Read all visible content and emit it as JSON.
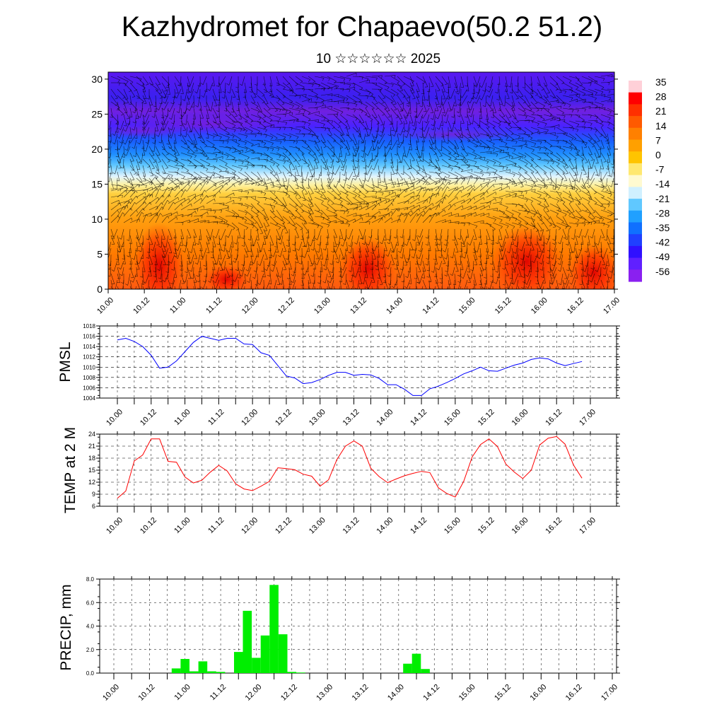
{
  "header": {
    "title": "Kazhydromet for Chapaevo(50.2 51.2)",
    "subtitle": "10 ☆☆☆☆☆☆ 2025"
  },
  "colors": {
    "pmsl_line": "#0000ff",
    "temp_line": "#ff0000",
    "precip_bar": "#00ee00"
  },
  "chart_data": [
    {
      "type": "heatmap",
      "name": "cross-section",
      "x_ticks": [
        "10.00",
        "10.12",
        "11.00",
        "11.12",
        "12.00",
        "12.12",
        "13.00",
        "13.12",
        "14.00",
        "14.12",
        "15.00",
        "15.12",
        "16.00",
        "16.12",
        "17.00"
      ],
      "y_ticks": [
        0,
        5,
        10,
        15,
        20,
        25,
        30
      ],
      "ylim": [
        0,
        31
      ],
      "colorbar_labels": [
        "35",
        "28",
        "21",
        "14",
        "7",
        "0",
        "-7",
        "-14",
        "-21",
        "-28",
        "-35",
        "-42",
        "-49",
        "-56"
      ],
      "overlay": "wind barbs"
    },
    {
      "type": "line",
      "name": "pmsl",
      "ylabel": "PMSL",
      "x_ticks": [
        "10.00",
        "10.12",
        "11.00",
        "11.12",
        "12.00",
        "12.12",
        "13.00",
        "13.12",
        "14.00",
        "14.12",
        "15.00",
        "15.12",
        "16.00",
        "16.12",
        "17.00"
      ],
      "y_ticks": [
        "1004",
        "1006",
        "1008",
        "1010",
        "1012",
        "1014",
        "1016",
        "1018"
      ],
      "ylim": [
        1004,
        1018
      ],
      "x": [
        0,
        3,
        6,
        9,
        12,
        15,
        18,
        21,
        24,
        27,
        30,
        33,
        36,
        39,
        42,
        45,
        48,
        51,
        54,
        57,
        60,
        63,
        66,
        69,
        72,
        75,
        78,
        81,
        84,
        87,
        90,
        93,
        96,
        99,
        102,
        105,
        108,
        111,
        114,
        117,
        120,
        123,
        126,
        129,
        132,
        135,
        138,
        141,
        144,
        147,
        150,
        153,
        156,
        159,
        162,
        165
      ],
      "values": [
        1015.3,
        1015.6,
        1015.0,
        1014.0,
        1012.3,
        1009.8,
        1010.0,
        1011.2,
        1013.0,
        1014.8,
        1016.0,
        1015.6,
        1015.2,
        1015.6,
        1015.6,
        1014.5,
        1014.4,
        1012.8,
        1012.3,
        1010.3,
        1008.3,
        1007.9,
        1006.8,
        1007.0,
        1007.6,
        1008.4,
        1009.0,
        1009.0,
        1008.4,
        1008.6,
        1008.5,
        1007.8,
        1006.6,
        1006.6,
        1005.7,
        1004.5,
        1004.5,
        1005.8,
        1006.3,
        1007.0,
        1007.8,
        1008.7,
        1009.3,
        1010.0,
        1009.3,
        1009.2,
        1009.8,
        1010.4,
        1010.8,
        1011.5,
        1011.8,
        1011.6,
        1010.8,
        1010.3,
        1010.7,
        1011.1
      ]
    },
    {
      "type": "line",
      "name": "temp",
      "ylabel": "TEMP at 2 M",
      "x_ticks": [
        "10.00",
        "10.12",
        "11.00",
        "11.12",
        "12.00",
        "12.12",
        "13.00",
        "13.12",
        "14.00",
        "14.12",
        "15.00",
        "15.12",
        "16.00",
        "16.12",
        "17.00"
      ],
      "y_ticks": [
        "6",
        "9",
        "12",
        "15",
        "18",
        "21",
        "24"
      ],
      "ylim": [
        6,
        24
      ],
      "x": [
        0,
        3,
        6,
        9,
        12,
        15,
        18,
        21,
        24,
        27,
        30,
        33,
        36,
        39,
        42,
        45,
        48,
        51,
        54,
        57,
        60,
        63,
        66,
        69,
        72,
        75,
        78,
        81,
        84,
        87,
        90,
        93,
        96,
        99,
        102,
        105,
        108,
        111,
        114,
        117,
        120,
        123,
        126,
        129,
        132,
        135,
        138,
        141,
        144,
        147,
        150,
        153,
        156,
        159,
        162,
        165
      ],
      "values": [
        8.0,
        9.8,
        17.3,
        18.8,
        22.8,
        22.8,
        17.2,
        17.0,
        13.3,
        11.8,
        12.5,
        14.5,
        16.2,
        14.8,
        11.6,
        10.3,
        9.9,
        11.0,
        12.2,
        15.6,
        15.4,
        15.1,
        14.0,
        13.5,
        11.0,
        12.6,
        17.7,
        21.0,
        22.3,
        21.0,
        15.5,
        13.4,
        11.9,
        12.8,
        13.6,
        14.2,
        14.7,
        14.4,
        10.6,
        9.2,
        8.3,
        12.2,
        18.3,
        21.4,
        22.8,
        20.9,
        16.5,
        14.5,
        12.9,
        15.0,
        21.3,
        23.0,
        23.4,
        21.5,
        16.3,
        13.0
      ]
    },
    {
      "type": "bar",
      "name": "precip",
      "ylabel": "PRECIP, mm",
      "x_ticks": [
        "10.00",
        "10.12",
        "11.00",
        "11.12",
        "12.00",
        "12.12",
        "13.00",
        "13.12",
        "14.00",
        "14.12",
        "15.00",
        "15.12",
        "16.00",
        "16.12",
        "17.00"
      ],
      "y_ticks": [
        "0.0",
        "2.0",
        "4.0",
        "6.0",
        "8.0"
      ],
      "ylim": [
        0,
        8
      ],
      "bar_step_hours": 3,
      "x": [
        21,
        24,
        27,
        30,
        33,
        36,
        42,
        45,
        48,
        51,
        54,
        57,
        60,
        63,
        99,
        102,
        105
      ],
      "values": [
        0.4,
        1.2,
        0.15,
        1.0,
        0.15,
        0.1,
        1.8,
        5.3,
        1.3,
        3.2,
        7.5,
        3.3,
        0.1,
        0.05,
        0.8,
        1.65,
        0.35
      ]
    }
  ]
}
